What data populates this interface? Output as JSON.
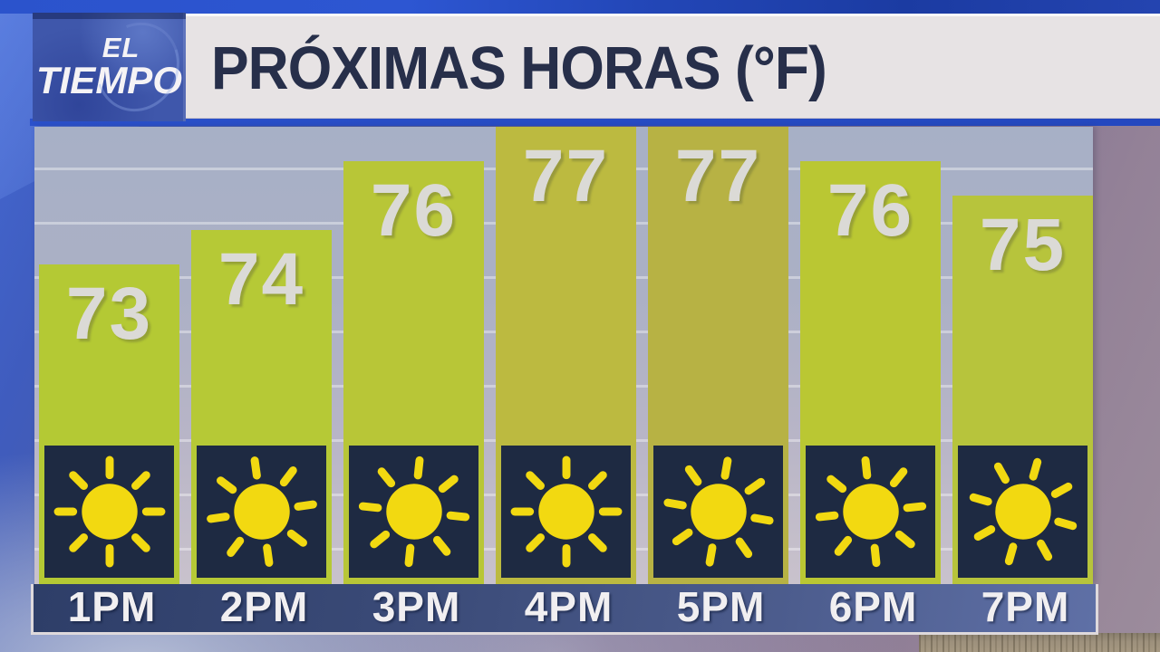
{
  "logo": {
    "line1": "EL",
    "line2": "TIEMPO"
  },
  "header": {
    "title": "PRÓXIMAS HORAS (°F)"
  },
  "chart_data": {
    "type": "bar",
    "title": "PRÓXIMAS HORAS (°F)",
    "unit": "°F",
    "categories": [
      "1PM",
      "2PM",
      "3PM",
      "4PM",
      "5PM",
      "6PM",
      "7PM"
    ],
    "values": [
      73,
      74,
      76,
      77,
      77,
      76,
      75
    ],
    "condition_icons": [
      "sun-icon",
      "sun-icon",
      "sun-icon",
      "sun-icon",
      "sun-icon",
      "sun-icon",
      "sun-icon"
    ],
    "ylim": [
      64,
      77
    ],
    "grid": "horizontal",
    "legend": "none",
    "bar_colors": [
      "#b4c934",
      "#b6c936",
      "#b8c637",
      "#bcba40",
      "#b7b244",
      "#bac733",
      "#b7c43c"
    ],
    "value_label_color": "#dbdad6",
    "sun_color": "#f2d911",
    "sun_box_color": "#1e2a42"
  },
  "colors": {
    "header_bg": "#e7e3e4",
    "header_text": "#272f4a",
    "header_border_blue": "#2b51cb",
    "logo_bg": "#3f57ab",
    "strip_blue": "#3a4a77",
    "plot_bg": "#abb0c5"
  }
}
